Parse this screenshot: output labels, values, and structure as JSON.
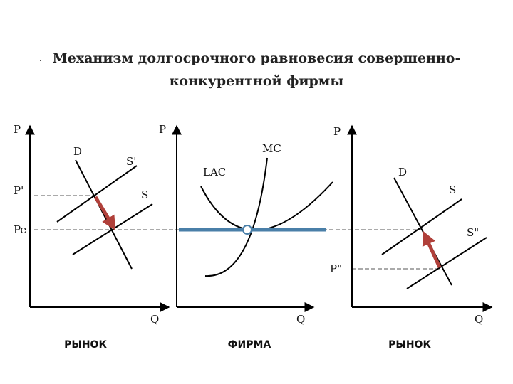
{
  "title": {
    "line1": "Механизм долгосрочного равновесия совершенно-",
    "line2": "конкурентной фирмы"
  },
  "market_left": {
    "y_axis_label": "P",
    "x_axis_label": "Q",
    "caption": "РЫНОК",
    "price_high_label": "P'",
    "price_eq_label": "Pe",
    "demand_label": "D",
    "supply_shifted_label": "S'",
    "supply_label": "S"
  },
  "firm": {
    "y_axis_label": "P",
    "x_axis_label": "Q",
    "caption": "ФИРМА",
    "mc_label": "MC",
    "lac_label": "LAC"
  },
  "market_right": {
    "y_axis_label": "P",
    "x_axis_label": "Q",
    "caption": "РЫНОК",
    "demand_label": "D",
    "supply_label": "S",
    "supply_shifted_label": "S\"",
    "price_low_label": "P\""
  },
  "colors": {
    "price_line": "#4a7fa8",
    "arrow": "#b0403a",
    "curve": "#000000"
  }
}
